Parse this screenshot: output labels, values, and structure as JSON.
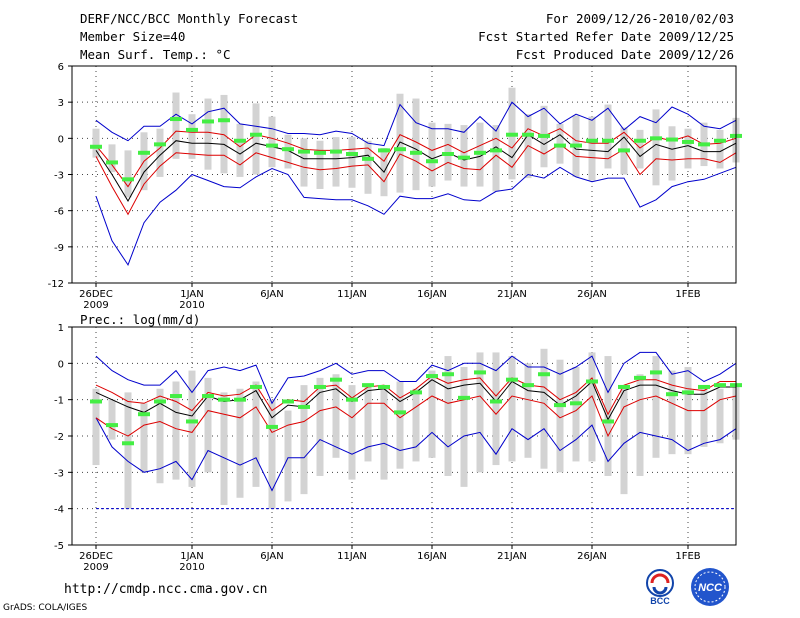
{
  "header": {
    "title": "DERF/NCC/BCC Monthly Forecast",
    "member": "Member Size=40",
    "variable": "Mean Surf. Temp.: °C",
    "period": "For 2009/12/26-2010/02/03",
    "refer": "Fcst Started Refer Date 2009/12/25",
    "produced": "Fcst Produced Date 2009/12/26"
  },
  "footer": {
    "url": "http://cmdp.ncc.cma.gov.cn",
    "grads": "GrADS: COLA/IGES",
    "logo1": "BCC",
    "logo2": "NCC"
  },
  "colors": {
    "bar": "#d3d3d3",
    "green": "#44ee44",
    "black": "#000000",
    "red": "#dd0000",
    "blue": "#0000cc",
    "grid": "#444444"
  },
  "chart_data": [
    {
      "type": "box-ensemble",
      "title": "Mean Surf. Temp.: °C",
      "ylabel": "",
      "ylim": [
        -12,
        6
      ],
      "yticks": [
        -12,
        -9,
        -6,
        -3,
        0,
        3,
        6
      ],
      "xticks": [
        {
          "day": 0,
          "label": "26DEC",
          "sub": "2009"
        },
        {
          "day": 6,
          "label": "1JAN",
          "sub": "2010"
        },
        {
          "day": 11,
          "label": "6JAN",
          "sub": ""
        },
        {
          "day": 16,
          "label": "11JAN",
          "sub": ""
        },
        {
          "day": 21,
          "label": "16JAN",
          "sub": ""
        },
        {
          "day": 26,
          "label": "21JAN",
          "sub": ""
        },
        {
          "day": 31,
          "label": "26JAN",
          "sub": ""
        },
        {
          "day": 37,
          "label": "1FEB",
          "sub": ""
        }
      ],
      "bar_low": [
        -1.6,
        -2.8,
        -4.9,
        -4.3,
        -3.2,
        -1.7,
        -1.7,
        -2.6,
        -2.9,
        -3.2,
        -3.0,
        -2.4,
        -2.5,
        -4.0,
        -4.2,
        -4.0,
        -4.1,
        -4.6,
        -4.8,
        -4.5,
        -4.3,
        -4.0,
        -3.5,
        -4.0,
        -4.0,
        -4.4,
        -3.4,
        -3.3,
        -2.4,
        -2.1,
        -3.2,
        -3.5,
        -2.5,
        -3.0,
        -2.5,
        -3.9,
        -3.5,
        -2.5,
        -2.3,
        -2.5,
        -2.0
      ],
      "bar_high": [
        0.8,
        -0.5,
        -1.0,
        0.5,
        0.8,
        3.8,
        2.0,
        3.3,
        3.6,
        1.2,
        2.9,
        1.8,
        0.3,
        0.0,
        -0.2,
        0.1,
        0.1,
        -0.2,
        -0.8,
        3.7,
        3.3,
        1.3,
        1.2,
        1.1,
        1.3,
        1.1,
        4.2,
        2.0,
        2.7,
        1.2,
        1.9,
        1.8,
        2.8,
        0.9,
        0.7,
        2.4,
        1.0,
        0.8,
        1.3,
        0.7,
        1.7
      ],
      "green": [
        -0.7,
        -2.0,
        -3.4,
        -1.2,
        -0.5,
        1.6,
        0.7,
        1.4,
        1.5,
        -0.2,
        0.3,
        -0.6,
        -0.9,
        -1.1,
        -1.2,
        -1.1,
        -1.3,
        -1.7,
        -1.0,
        -0.9,
        -1.2,
        -1.9,
        -1.3,
        -1.6,
        -1.2,
        -1.0,
        0.3,
        0.3,
        0.2,
        -0.6,
        -0.6,
        -0.2,
        -0.2,
        -1.0,
        -0.2,
        0.0,
        -0.1,
        -0.3,
        -0.5,
        -0.2,
        0.2
      ],
      "mean": [
        -1.0,
        -3.0,
        -5.2,
        -2.8,
        -1.4,
        -0.2,
        -0.4,
        -0.4,
        -0.5,
        -1.3,
        -0.4,
        -0.7,
        -1.0,
        -1.7,
        -1.7,
        -1.7,
        -1.6,
        -1.4,
        -2.8,
        -0.3,
        -0.9,
        -1.7,
        -1.2,
        -1.8,
        -1.5,
        -0.7,
        -1.6,
        0.3,
        -0.5,
        0.3,
        -0.9,
        -1.0,
        -1.1,
        0.1,
        -1.5,
        -0.5,
        -0.9,
        -0.6,
        -1.1,
        -1.1,
        -0.4
      ],
      "p_high": [
        -0.6,
        -2.2,
        -4.0,
        -1.9,
        -0.8,
        0.6,
        0.5,
        0.5,
        0.3,
        -0.7,
        0.3,
        0.0,
        -0.4,
        -0.9,
        -1.0,
        -1.0,
        -0.9,
        -0.8,
        -1.9,
        0.3,
        -0.3,
        -1.0,
        -0.5,
        -1.2,
        -0.6,
        0.0,
        -0.8,
        0.8,
        0.2,
        0.8,
        -0.2,
        -0.4,
        -0.4,
        0.5,
        -0.8,
        0.1,
        -0.2,
        0.2,
        -0.5,
        -0.4,
        0.0
      ],
      "p_low": [
        -1.5,
        -4.0,
        -6.3,
        -3.8,
        -2.3,
        -1.2,
        -1.3,
        -1.4,
        -1.4,
        -2.2,
        -1.2,
        -1.6,
        -2.0,
        -2.4,
        -2.6,
        -2.5,
        -2.3,
        -2.2,
        -3.6,
        -1.3,
        -1.9,
        -2.7,
        -2.0,
        -2.5,
        -2.6,
        -1.4,
        -2.4,
        -0.6,
        -1.3,
        -0.5,
        -1.5,
        -1.6,
        -1.7,
        -0.9,
        -3.0,
        -1.7,
        -1.8,
        -1.7,
        -1.7,
        -2.0,
        -1.2
      ],
      "max": [
        1.5,
        0.5,
        -0.2,
        1.0,
        1.0,
        2.0,
        1.2,
        2.2,
        2.5,
        1.2,
        1.0,
        0.8,
        0.4,
        0.4,
        0.3,
        0.6,
        0.4,
        -0.4,
        -0.6,
        2.8,
        1.3,
        0.8,
        0.8,
        0.5,
        1.8,
        0.6,
        3.0,
        1.8,
        2.5,
        1.2,
        2.0,
        1.5,
        2.5,
        0.7,
        1.8,
        1.3,
        2.6,
        2.0,
        1.0,
        0.8,
        1.5
      ],
      "min": [
        -4.8,
        -8.5,
        -10.5,
        -7.0,
        -5.3,
        -4.3,
        -3.0,
        -3.5,
        -4.0,
        -4.1,
        -3.2,
        -2.5,
        -3.0,
        -4.9,
        -5.0,
        -5.1,
        -5.1,
        -5.6,
        -6.3,
        -4.8,
        -5.0,
        -5.0,
        -4.6,
        -5.1,
        -5.2,
        -4.4,
        -4.2,
        -3.0,
        -3.3,
        -2.4,
        -3.2,
        -3.6,
        -3.3,
        -3.3,
        -5.7,
        -5.1,
        -4.0,
        -3.6,
        -3.4,
        -2.9,
        -2.4
      ]
    },
    {
      "type": "box-ensemble",
      "title": "Prec.: log(mm/d)",
      "ylabel": "Prec.: log(mm/d)",
      "ylim": [
        -5,
        1
      ],
      "yticks": [
        -5,
        -4,
        -3,
        -2,
        -1,
        0,
        1
      ],
      "threshold": -4,
      "xticks": [
        {
          "day": 0,
          "label": "26DEC",
          "sub": "2009"
        },
        {
          "day": 6,
          "label": "1JAN",
          "sub": "2010"
        },
        {
          "day": 11,
          "label": "6JAN",
          "sub": ""
        },
        {
          "day": 16,
          "label": "11JAN",
          "sub": ""
        },
        {
          "day": 21,
          "label": "16JAN",
          "sub": ""
        },
        {
          "day": 26,
          "label": "21JAN",
          "sub": ""
        },
        {
          "day": 31,
          "label": "26JAN",
          "sub": ""
        },
        {
          "day": 37,
          "label": "1FEB",
          "sub": ""
        }
      ],
      "bar_low": [
        -2.8,
        -2.1,
        -4.0,
        -3.0,
        -3.3,
        -3.2,
        -3.4,
        -3.0,
        -3.9,
        -3.7,
        -3.4,
        -4.0,
        -3.8,
        -3.6,
        -3.1,
        -2.6,
        -3.2,
        -2.7,
        -3.2,
        -2.9,
        -2.7,
        -2.6,
        -3.1,
        -3.4,
        -3.0,
        -2.8,
        -2.7,
        -2.6,
        -2.9,
        -3.0,
        -2.7,
        -2.7,
        -3.1,
        -3.6,
        -3.1,
        -2.6,
        -2.5,
        -2.5,
        -2.3,
        -2.2,
        -2.1
      ],
      "bar_high": [
        -0.7,
        -1.0,
        -0.8,
        -1.1,
        -0.7,
        -0.5,
        -0.2,
        -0.4,
        -0.8,
        -0.7,
        -0.5,
        -1.0,
        -1.3,
        -0.6,
        -0.4,
        -0.3,
        -0.6,
        -0.6,
        -0.7,
        -0.5,
        -0.7,
        -0.2,
        0.2,
        -0.1,
        0.3,
        0.3,
        0.2,
        0.0,
        0.4,
        0.1,
        -0.1,
        0.3,
        0.2,
        -0.6,
        -0.3,
        0.2,
        -0.2,
        -0.1,
        -0.6,
        -0.7,
        -0.6
      ],
      "green": [
        -1.05,
        -1.7,
        -2.2,
        -1.4,
        -1.05,
        -0.9,
        -1.6,
        -0.9,
        -1.0,
        -1.0,
        -0.65,
        -1.75,
        -1.05,
        -1.2,
        -0.65,
        -0.45,
        -1.0,
        -0.6,
        -0.65,
        -1.35,
        -0.8,
        -0.35,
        -0.3,
        -0.95,
        -0.25,
        -1.05,
        -0.45,
        -0.6,
        -0.3,
        -1.15,
        -1.1,
        -0.5,
        -1.6,
        -0.65,
        -0.4,
        -0.25,
        -0.85,
        -0.8,
        -0.65,
        -0.6,
        -0.6
      ],
      "mean": [
        -0.8,
        -1.0,
        -1.2,
        -1.35,
        -1.1,
        -1.35,
        -1.45,
        -0.9,
        -1.05,
        -1.0,
        -0.75,
        -1.5,
        -1.15,
        -1.2,
        -0.8,
        -0.7,
        -1.05,
        -0.75,
        -0.7,
        -1.05,
        -0.8,
        -0.45,
        -0.7,
        -0.6,
        -0.55,
        -1.05,
        -0.5,
        -0.75,
        -0.8,
        -1.15,
        -0.9,
        -0.5,
        -1.55,
        -0.75,
        -0.6,
        -0.6,
        -0.75,
        -0.85,
        -0.85,
        -0.65,
        -0.65
      ],
      "p_high": [
        -0.6,
        -0.8,
        -1.05,
        -1.1,
        -0.9,
        -1.05,
        -1.3,
        -0.8,
        -0.9,
        -0.85,
        -0.6,
        -1.3,
        -1.0,
        -1.05,
        -0.65,
        -0.6,
        -0.95,
        -0.65,
        -0.6,
        -0.95,
        -0.7,
        -0.35,
        -0.55,
        -0.45,
        -0.4,
        -0.9,
        -0.4,
        -0.6,
        -0.65,
        -1.0,
        -0.8,
        -0.4,
        -1.4,
        -0.6,
        -0.45,
        -0.45,
        -0.6,
        -0.7,
        -0.75,
        -0.5,
        -0.5
      ],
      "p_low": [
        -1.5,
        -1.8,
        -2.0,
        -1.7,
        -1.6,
        -1.8,
        -1.9,
        -1.3,
        -1.4,
        -1.5,
        -1.2,
        -1.9,
        -1.7,
        -1.6,
        -1.3,
        -1.2,
        -1.5,
        -1.1,
        -1.1,
        -1.5,
        -1.2,
        -0.9,
        -1.1,
        -1.0,
        -0.9,
        -1.4,
        -0.9,
        -1.0,
        -1.1,
        -1.5,
        -1.3,
        -0.9,
        -2.0,
        -1.2,
        -1.0,
        -0.9,
        -1.1,
        -1.3,
        -1.3,
        -1.0,
        -0.9
      ],
      "max": [
        0.2,
        -0.2,
        -0.45,
        -0.6,
        -0.6,
        -0.2,
        -0.8,
        -0.2,
        -0.1,
        -0.2,
        -0.05,
        -1.1,
        -0.4,
        -0.35,
        -0.2,
        0.0,
        -0.3,
        -0.2,
        -0.2,
        -0.5,
        -0.5,
        -0.05,
        -0.2,
        0.0,
        0.0,
        -0.2,
        0.2,
        -0.1,
        -0.1,
        -0.3,
        -0.1,
        0.2,
        -0.8,
        0.0,
        0.3,
        0.3,
        -0.3,
        -0.2,
        -0.5,
        -0.3,
        0.0
      ],
      "min": [
        -1.5,
        -2.3,
        -2.7,
        -3.0,
        -2.9,
        -2.7,
        -3.2,
        -2.4,
        -2.6,
        -2.8,
        -2.6,
        -3.5,
        -2.6,
        -2.6,
        -2.1,
        -2.3,
        -2.5,
        -2.3,
        -2.2,
        -2.4,
        -2.3,
        -1.9,
        -2.3,
        -2.0,
        -1.9,
        -2.5,
        -1.8,
        -2.1,
        -1.8,
        -2.4,
        -2.1,
        -1.7,
        -2.7,
        -2.2,
        -1.9,
        -2.0,
        -2.1,
        -2.4,
        -2.2,
        -2.1,
        -1.8
      ]
    }
  ]
}
